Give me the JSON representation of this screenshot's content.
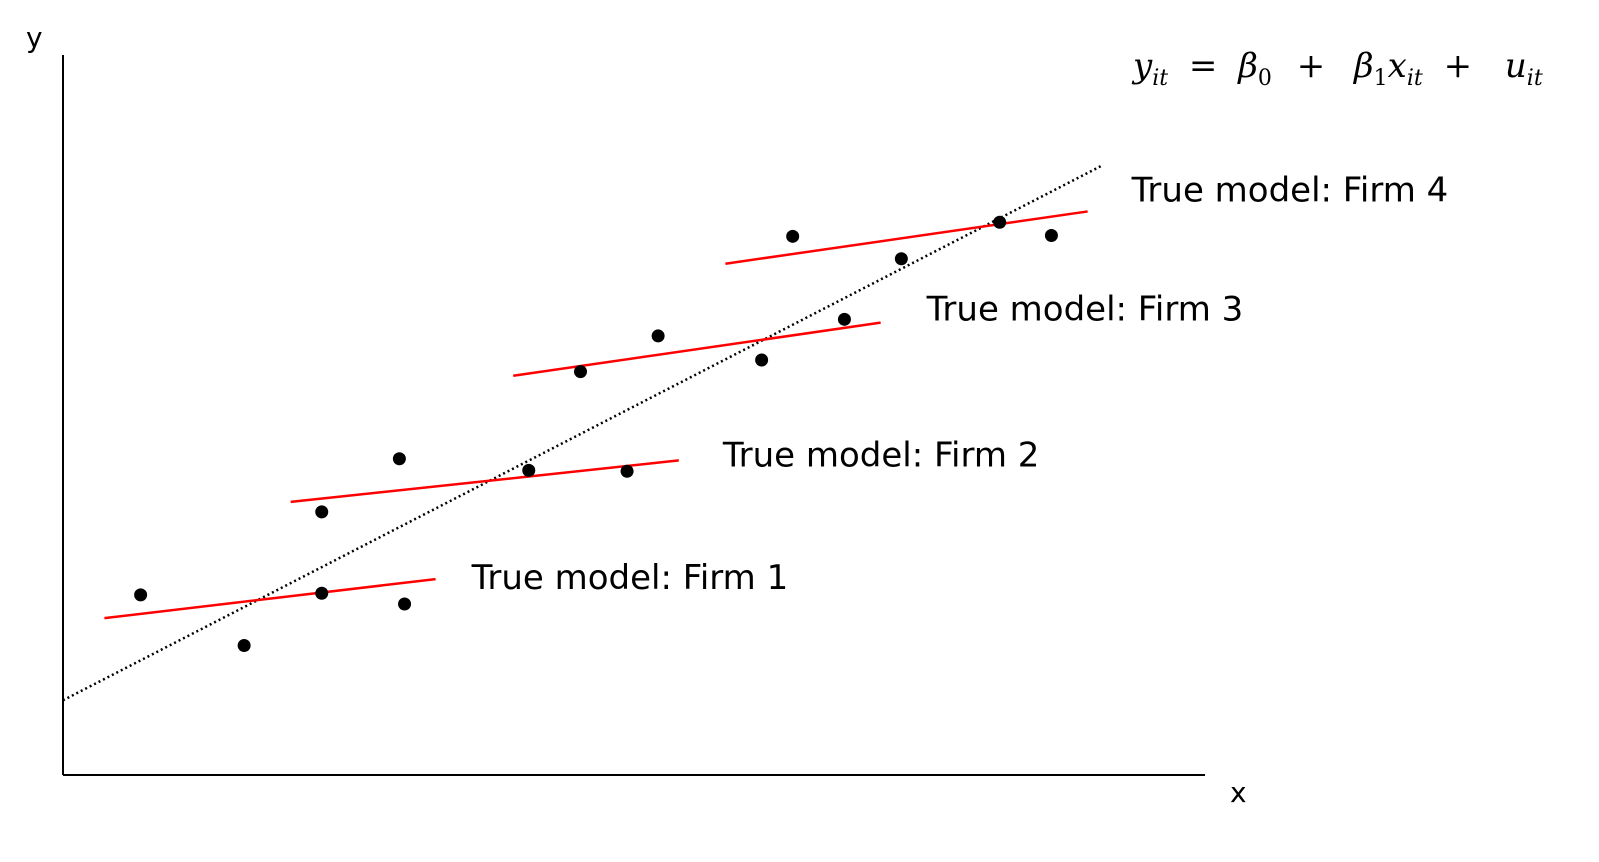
{
  "chart_data": {
    "type": "scatter",
    "xlabel": "x",
    "ylabel": "y",
    "equation": {
      "y": "y",
      "y_sub": "it",
      "eq": "=",
      "b0": "β",
      "b0_sub": "0",
      "plus1": "+",
      "b1": "β",
      "b1_sub": "1",
      "x": "x",
      "x_sub": "it",
      "plus2": "+",
      "u": "u",
      "u_sub": "it"
    },
    "pooled_line": {
      "style": "dotted",
      "color": "#000000",
      "from": [
        0,
        9.0
      ],
      "to": [
        10.05,
        73.5
      ]
    },
    "firms": [
      {
        "label": "True model: Firm 1",
        "line_color": "#ff0000",
        "line": {
          "from": [
            0.4,
            18.9
          ],
          "to": [
            3.6,
            23.6
          ]
        },
        "points": [
          [
            0.75,
            21.7
          ],
          [
            1.75,
            15.6
          ],
          [
            2.5,
            21.9
          ],
          [
            3.3,
            20.6
          ]
        ]
      },
      {
        "label": "True model: Firm 2",
        "line_color": "#ff0000",
        "line": {
          "from": [
            2.2,
            32.9
          ],
          "to": [
            5.95,
            37.9
          ]
        },
        "points": [
          [
            2.5,
            31.7
          ],
          [
            3.25,
            38.1
          ],
          [
            4.5,
            36.7
          ],
          [
            5.45,
            36.6
          ]
        ]
      },
      {
        "label": "True model: Firm 3",
        "line_color": "#ff0000",
        "line": {
          "from": [
            4.35,
            48.1
          ],
          "to": [
            7.9,
            54.5
          ]
        },
        "points": [
          [
            5.0,
            48.6
          ],
          [
            5.75,
            52.9
          ],
          [
            6.75,
            50.0
          ],
          [
            7.55,
            54.9
          ]
        ]
      },
      {
        "label": "True model: Firm 4",
        "line_color": "#ff0000",
        "line": {
          "from": [
            6.4,
            61.6
          ],
          "to": [
            9.9,
            67.9
          ]
        },
        "points": [
          [
            7.05,
            64.9
          ],
          [
            8.1,
            62.2
          ],
          [
            9.05,
            66.6
          ],
          [
            9.55,
            65.0
          ]
        ]
      }
    ],
    "xlim": [
      0,
      11
    ],
    "ylim": [
      0,
      84
    ],
    "grid": false,
    "legend": "none"
  }
}
